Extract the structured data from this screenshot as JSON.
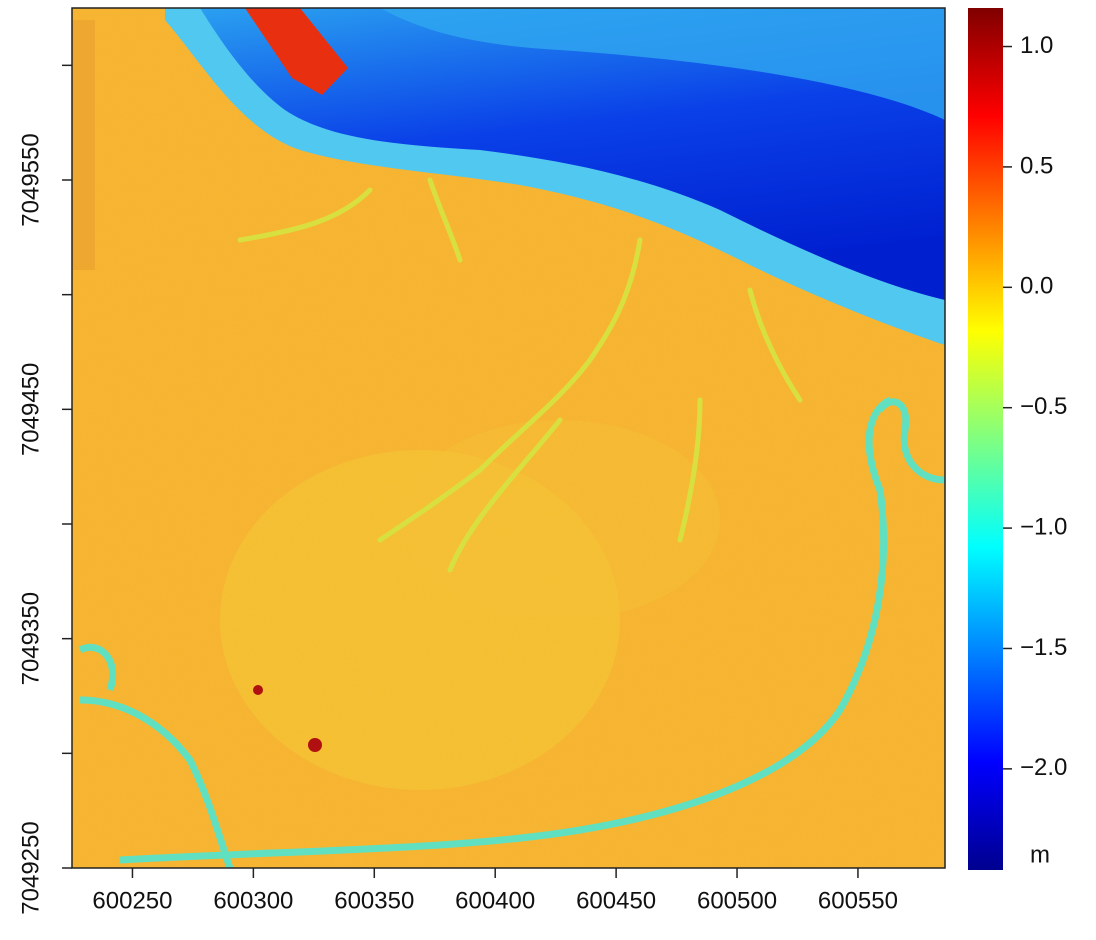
{
  "chart_data": {
    "type": "raster",
    "xlim": [
      600225,
      600586
    ],
    "xticks": [
      600250,
      600300,
      600350,
      600400,
      600450,
      600500,
      600550
    ],
    "ylim": [
      7049250,
      7049625
    ],
    "yticks": [
      7049250,
      7049350,
      7049450,
      7049550
    ],
    "yticks_minor": [
      7049300,
      7049400,
      7049500,
      7049600
    ],
    "colorbar": {
      "label": "m",
      "lim": [
        -2.42,
        1.16
      ],
      "ticks": [
        {
          "value": 1.0,
          "label": "1.0"
        },
        {
          "value": 0.5,
          "label": "0.5"
        },
        {
          "value": 0.0,
          "label": "0.0"
        },
        {
          "value": -0.5,
          "label": "−0.5"
        },
        {
          "value": -1.0,
          "label": "−1.0"
        },
        {
          "value": -1.5,
          "label": "−1.5"
        },
        {
          "value": -2.0,
          "label": "−2.0"
        }
      ],
      "colormap": [
        "#00008f",
        "#0000ff",
        "#0080ff",
        "#00ffff",
        "#80ff80",
        "#ffff00",
        "#ff8000",
        "#ff0000",
        "#800000"
      ]
    }
  }
}
